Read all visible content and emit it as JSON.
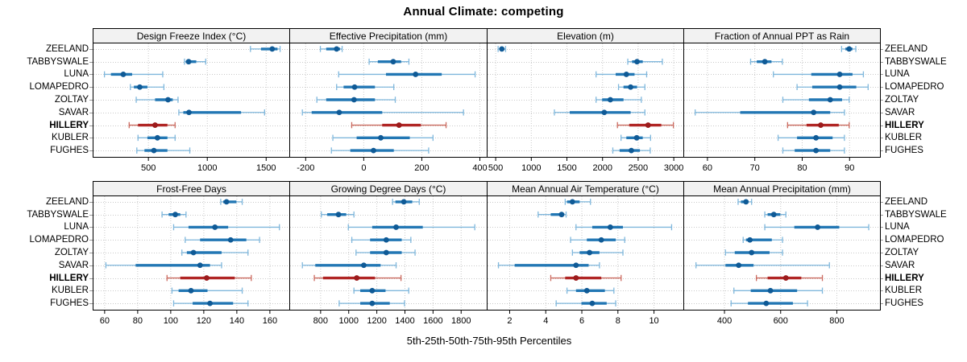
{
  "figure": {
    "title": "Annual Climate: competing",
    "footer": "5th-25th-50th-75th-95th Percentiles"
  },
  "chart_data": {
    "type": "dotplot",
    "subtype": "horizontal percentile interval plot (dot = median, thick band = 25th-75th, thin line with caps = 5th-95th)",
    "percentiles": [
      5,
      25,
      50,
      75,
      95
    ],
    "title": "Annual Climate: competing",
    "caption": "5th-25th-50th-75th-95th Percentiles",
    "layout": "2 rows x 4 columns of panels, station names on both left and right",
    "grid": "dotted",
    "legend_position": "none",
    "stations": [
      "ZEELAND",
      "TABBYSWALE",
      "LUNA",
      "LOMAPEDRO",
      "ZOLTAY",
      "SAVAR",
      "HILLERY",
      "KUBLER",
      "FUGHES"
    ],
    "highlighted_station": "HILLERY",
    "colors": {
      "blue_line": "#7FB7DC",
      "blue_band": "#2277B4",
      "blue_dot": "#0F5A96",
      "red_line": "#CC6A5F",
      "red_band": "#B02524",
      "red_dot": "#9C1B1C",
      "grid": "#C9C9C9",
      "strip_bg": "#F2F2F2",
      "border": "#000000"
    },
    "panels": [
      {
        "title": "Design Freeze Index (°C)",
        "xlim": [
          30,
          1700
        ],
        "ticks": [
          500,
          1000,
          1500
        ],
        "values": [
          [
            1370,
            1460,
            1555,
            1600,
            1622
          ],
          [
            810,
            822,
            845,
            910,
            990
          ],
          [
            130,
            185,
            290,
            365,
            625
          ],
          [
            350,
            380,
            430,
            495,
            635
          ],
          [
            400,
            560,
            670,
            710,
            755
          ],
          [
            762,
            800,
            848,
            1290,
            1490
          ],
          [
            340,
            415,
            560,
            665,
            730
          ],
          [
            415,
            495,
            580,
            665,
            730
          ],
          [
            405,
            470,
            550,
            665,
            855
          ]
        ]
      },
      {
        "title": "Effective Precipitation (mm)",
        "xlim": [
          -255,
          425
        ],
        "ticks": [
          -200,
          0,
          200,
          400
        ],
        "values": [
          [
            -148,
            -128,
            -92,
            -80,
            -73
          ],
          [
            20,
            50,
            103,
            130,
            157
          ],
          [
            -85,
            78,
            180,
            270,
            385
          ],
          [
            -92,
            -68,
            -30,
            40,
            105
          ],
          [
            -160,
            -128,
            -32,
            40,
            110
          ],
          [
            -210,
            -178,
            -83,
            65,
            345
          ],
          [
            -40,
            65,
            123,
            198,
            285
          ],
          [
            -105,
            -23,
            60,
            160,
            240
          ],
          [
            -110,
            -45,
            35,
            105,
            225
          ]
        ]
      },
      {
        "title": "Elevation (m)",
        "xlim": [
          380,
          3140
        ],
        "ticks": [
          500,
          1000,
          1500,
          2000,
          2500,
          3000
        ],
        "values": [
          [
            540,
            565,
            592,
            620,
            645
          ],
          [
            2360,
            2420,
            2490,
            2570,
            2845
          ],
          [
            1915,
            2190,
            2340,
            2455,
            2625
          ],
          [
            2230,
            2300,
            2400,
            2490,
            2600
          ],
          [
            1915,
            2000,
            2115,
            2300,
            2550
          ],
          [
            1330,
            1545,
            2030,
            2400,
            2600
          ],
          [
            2215,
            2380,
            2645,
            2830,
            3000
          ],
          [
            2265,
            2340,
            2485,
            2570,
            2680
          ],
          [
            2150,
            2245,
            2410,
            2530,
            2675
          ]
        ]
      },
      {
        "title": "Fraction of Annual PPT as Rain",
        "xlim": [
          55,
          96.5
        ],
        "ticks": [
          60,
          70,
          80,
          90
        ],
        "values": [
          [
            88.4,
            89.2,
            90,
            90.7,
            91.4
          ],
          [
            69.2,
            70.5,
            72.2,
            73.6,
            75.9
          ],
          [
            74,
            82,
            88,
            90.7,
            93
          ],
          [
            79,
            82.2,
            88,
            91.5,
            94
          ],
          [
            76,
            81.5,
            86,
            88.5,
            90
          ],
          [
            57.5,
            67,
            82.5,
            86,
            89
          ],
          [
            77,
            81,
            84,
            87.8,
            90
          ],
          [
            75,
            79,
            83,
            86.5,
            89
          ],
          [
            76,
            78.5,
            83,
            86,
            89
          ]
        ]
      },
      {
        "title": "Frost-Free Days",
        "xlim": [
          53,
          172
        ],
        "ticks": [
          60,
          80,
          100,
          120,
          140,
          160
        ],
        "values": [
          [
            130.5,
            132,
            134,
            140,
            143.5
          ],
          [
            95,
            99,
            103,
            106,
            109.5
          ],
          [
            102,
            111,
            127,
            135,
            166
          ],
          [
            109,
            118,
            136.5,
            146,
            154
          ],
          [
            107,
            110,
            114,
            131,
            147
          ],
          [
            61,
            79,
            118,
            124,
            131
          ],
          [
            98,
            106,
            122,
            139,
            149
          ],
          [
            101,
            105,
            112.5,
            122.5,
            143.5
          ],
          [
            102,
            113.5,
            124,
            138,
            147
          ]
        ]
      },
      {
        "title": "Growing Degree Days (°C)",
        "xlim": [
          580,
          1985
        ],
        "ticks": [
          800,
          1000,
          1200,
          1400,
          1600,
          1800
        ],
        "values": [
          [
            1315,
            1335,
            1395,
            1455,
            1505
          ],
          [
            808,
            850,
            930,
            985,
            1040
          ],
          [
            1000,
            1170,
            1340,
            1530,
            1900
          ],
          [
            1025,
            1155,
            1270,
            1380,
            1445
          ],
          [
            1055,
            1155,
            1270,
            1380,
            1475
          ],
          [
            673,
            765,
            1110,
            1230,
            1340
          ],
          [
            758,
            820,
            1060,
            1190,
            1375
          ],
          [
            1040,
            1085,
            1170,
            1265,
            1430
          ],
          [
            935,
            1085,
            1170,
            1295,
            1400
          ]
        ]
      },
      {
        "title": "Mean Annual Air Temperature (°C)",
        "xlim": [
          0.75,
          11.65
        ],
        "ticks": [
          2,
          4,
          6,
          8,
          10
        ],
        "values": [
          [
            5.1,
            5.2,
            5.5,
            5.9,
            6.5
          ],
          [
            3.6,
            4.3,
            4.9,
            5.05,
            5.15
          ],
          [
            5.7,
            6.6,
            7.6,
            8.3,
            11.0
          ],
          [
            5.4,
            6.3,
            7.1,
            7.9,
            8.4
          ],
          [
            5.5,
            5.9,
            6.45,
            7.0,
            8.3
          ],
          [
            1.4,
            2.3,
            5.7,
            6.4,
            7.0
          ],
          [
            4.3,
            5.1,
            5.7,
            7.1,
            8.2
          ],
          [
            5.2,
            5.7,
            6.3,
            7.3,
            7.8
          ],
          [
            4.6,
            6.0,
            6.6,
            7.4,
            7.9
          ]
        ]
      },
      {
        "title": "Mean Annual Precipitation (mm)",
        "xlim": [
          255,
          955
        ],
        "ticks": [
          400,
          600,
          800
        ],
        "values": [
          [
            450,
            460,
            478,
            487,
            498
          ],
          [
            545,
            555,
            577,
            600,
            620
          ],
          [
            545,
            650,
            733,
            810,
            915
          ],
          [
            468,
            478,
            492,
            570,
            608
          ],
          [
            405,
            438,
            498,
            562,
            608
          ],
          [
            300,
            405,
            452,
            505,
            775
          ],
          [
            515,
            555,
            620,
            675,
            750
          ],
          [
            435,
            495,
            565,
            660,
            750
          ],
          [
            425,
            485,
            550,
            645,
            697
          ]
        ]
      }
    ]
  }
}
